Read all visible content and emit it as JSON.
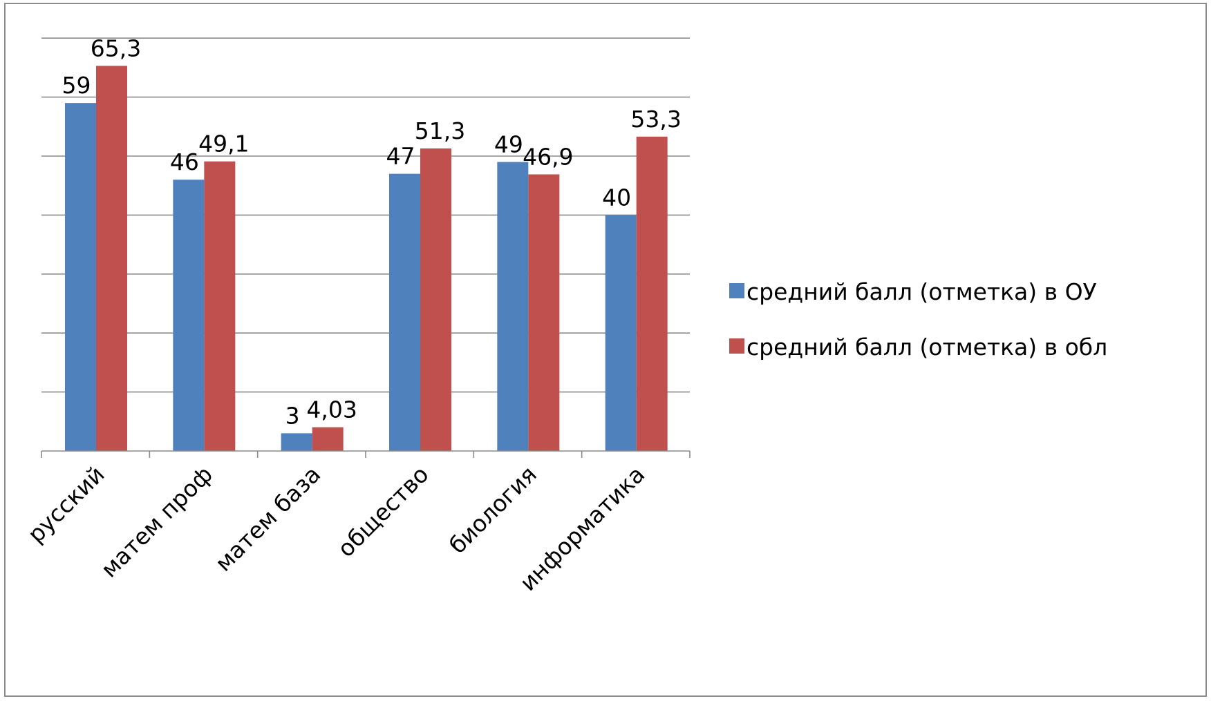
{
  "chart_data": {
    "type": "bar",
    "categories": [
      "русский",
      "матем проф",
      "матем база",
      "общество",
      "биология",
      "информатика"
    ],
    "series": [
      {
        "name": "средний балл (отметка) в ОУ",
        "values": [
          59,
          46,
          3,
          47,
          49,
          40
        ],
        "labels": [
          "59",
          "46",
          "3",
          "47",
          "49",
          "40"
        ],
        "color": "#4f81bd"
      },
      {
        "name": "средний балл (отметка) в обл",
        "values": [
          65.3,
          49.1,
          4.03,
          51.3,
          46.9,
          53.3
        ],
        "labels": [
          "65,3",
          "49,1",
          "4,03",
          "51,3",
          "46,9",
          "53,3"
        ],
        "color": "#c0504d"
      }
    ],
    "ylim": [
      0,
      70
    ],
    "y_major_unit": 10,
    "grid": true,
    "legend_position": "right",
    "title": "",
    "xlabel": "",
    "ylabel": ""
  }
}
